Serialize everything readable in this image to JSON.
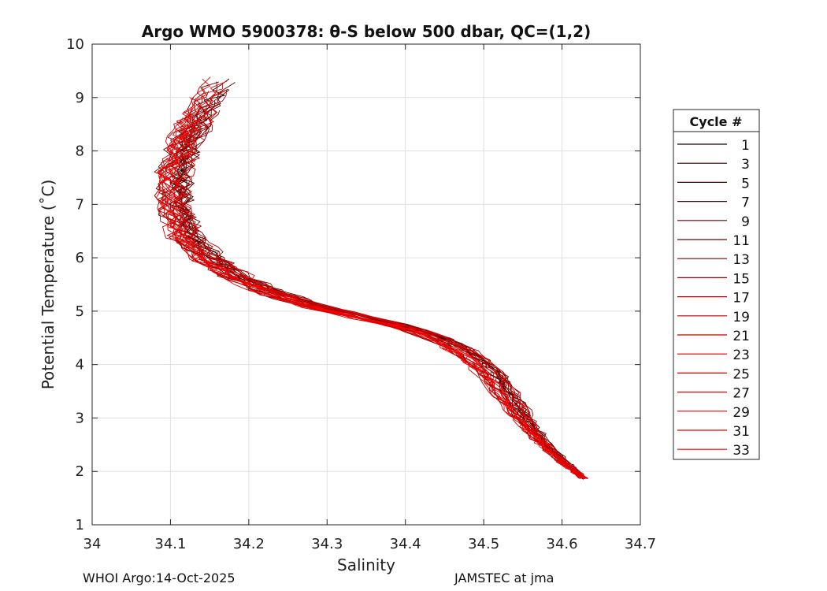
{
  "chart_data": {
    "type": "line",
    "title": "Argo WMO 5900378: θ-S below 500 dbar,  QC=(1,2)",
    "xlabel": "Salinity",
    "ylabel": "Potential Temperature (˚C)",
    "xlim": [
      34.0,
      34.7
    ],
    "ylim": [
      1,
      10
    ],
    "xticks": [
      "34",
      "34.1",
      "34.2",
      "34.3",
      "34.4",
      "34.5",
      "34.6",
      "34.7"
    ],
    "yticks": [
      "1",
      "2",
      "3",
      "4",
      "5",
      "6",
      "7",
      "8",
      "9",
      "10"
    ],
    "grid": true,
    "legend_title": "Cycle #",
    "legend_position": "right",
    "legend_entries": [
      "1",
      "3",
      "5",
      "7",
      "9",
      "11",
      "13",
      "15",
      "17",
      "19",
      "21",
      "23",
      "25",
      "27",
      "29",
      "31",
      "33"
    ],
    "series_colors": [
      "#1a0000",
      "#2a0000",
      "#3c0000",
      "#4e0000",
      "#600000",
      "#720000",
      "#840000",
      "#960000",
      "#a80000",
      "#b80000",
      "#c60000",
      "#d20000",
      "#dc0000",
      "#e40000",
      "#ec0000",
      "#f40000",
      "#fa0000"
    ],
    "mean_profile": {
      "salinity": [
        34.63,
        34.6,
        34.57,
        34.55,
        34.53,
        34.51,
        34.48,
        34.44,
        34.4,
        34.34,
        34.28,
        34.23,
        34.19,
        34.15,
        34.12,
        34.105,
        34.105,
        34.12,
        34.14,
        34.165
      ],
      "theta": [
        1.85,
        2.2,
        2.6,
        3.0,
        3.4,
        3.8,
        4.2,
        4.5,
        4.7,
        4.9,
        5.1,
        5.35,
        5.6,
        5.95,
        6.4,
        7.0,
        7.6,
        8.2,
        8.8,
        9.4
      ]
    }
  },
  "footer": {
    "left": "WHOI Argo:14-Oct-2025",
    "right": "JAMSTEC at jma"
  }
}
